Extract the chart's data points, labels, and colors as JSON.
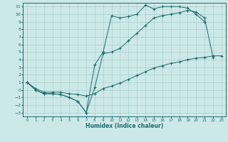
{
  "xlabel": "Humidex (Indice chaleur)",
  "bg_color": "#cde8e8",
  "grid_color": "#aad0d0",
  "line_color": "#1a6b6b",
  "xlim": [
    -0.5,
    23.5
  ],
  "ylim": [
    -3.5,
    11.5
  ],
  "xticks": [
    0,
    1,
    2,
    3,
    4,
    5,
    6,
    7,
    8,
    9,
    10,
    11,
    12,
    13,
    14,
    15,
    16,
    17,
    18,
    19,
    20,
    21,
    22,
    23
  ],
  "yticks": [
    -3,
    -2,
    -1,
    0,
    1,
    2,
    3,
    4,
    5,
    6,
    7,
    8,
    9,
    10,
    11
  ],
  "line1_x": [
    0,
    1,
    2,
    3,
    4,
    5,
    6,
    7,
    8,
    9,
    10,
    11,
    12,
    13,
    14,
    15,
    16,
    17,
    18,
    19,
    20,
    21
  ],
  "line1_y": [
    1.0,
    0.0,
    -0.5,
    -0.5,
    -0.6,
    -1.0,
    -1.5,
    -3.0,
    3.3,
    5.0,
    9.8,
    9.5,
    9.7,
    10.0,
    11.2,
    10.7,
    11.0,
    11.0,
    11.0,
    10.8,
    10.0,
    9.0
  ],
  "line2_x": [
    0,
    1,
    2,
    3,
    4,
    5,
    6,
    7,
    8,
    9,
    10,
    11,
    12,
    13,
    14,
    15,
    16,
    17,
    18,
    19,
    20,
    21,
    22
  ],
  "line2_y": [
    1.0,
    0.0,
    -0.5,
    -0.5,
    -0.6,
    -1.0,
    -1.5,
    -3.0,
    0.3,
    4.8,
    5.0,
    5.5,
    6.5,
    7.5,
    8.5,
    9.5,
    9.8,
    10.0,
    10.2,
    10.5,
    10.3,
    9.5,
    4.3
  ],
  "line3_x": [
    0,
    1,
    2,
    3,
    4,
    5,
    6,
    7,
    8,
    9,
    10,
    11,
    12,
    13,
    14,
    15,
    16,
    17,
    18,
    19,
    20,
    21,
    22,
    23
  ],
  "line3_y": [
    1.0,
    0.2,
    -0.3,
    -0.3,
    -0.3,
    -0.5,
    -0.6,
    -0.8,
    -0.5,
    0.2,
    0.5,
    0.9,
    1.4,
    1.9,
    2.4,
    2.9,
    3.2,
    3.5,
    3.7,
    4.0,
    4.2,
    4.3,
    4.5,
    4.5
  ]
}
